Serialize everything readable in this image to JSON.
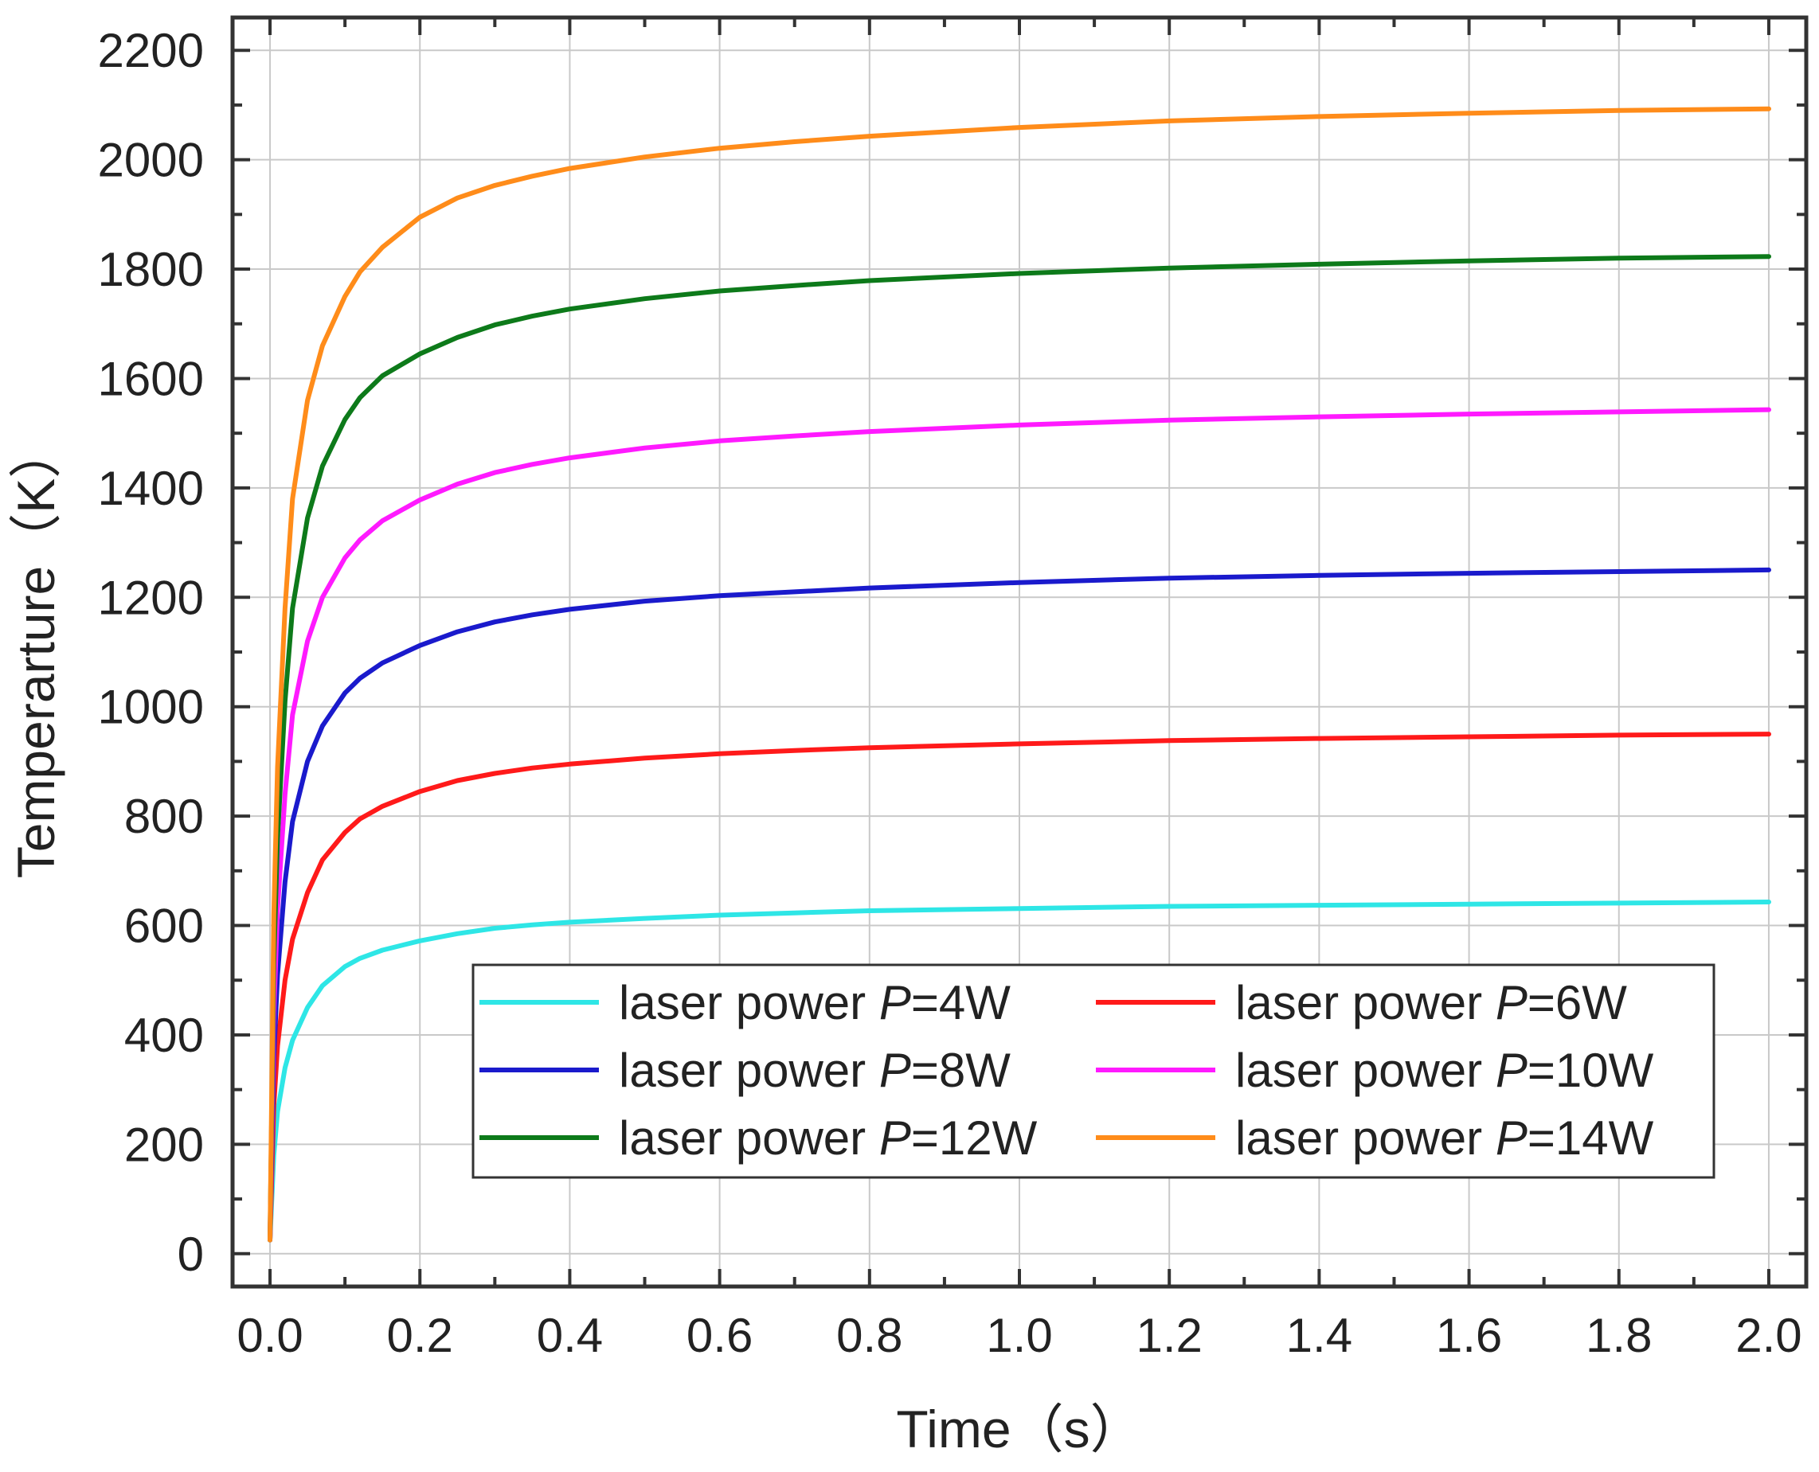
{
  "chart_data": {
    "type": "line",
    "title": "",
    "xlabel": "Time（s）",
    "ylabel": "Temperarture（K）",
    "xlim": [
      -0.05,
      2.05
    ],
    "ylim": [
      -60,
      2260
    ],
    "x_ticks": [
      0.0,
      0.2,
      0.4,
      0.6,
      0.8,
      1.0,
      1.2,
      1.4,
      1.6,
      1.8,
      2.0
    ],
    "x_tick_labels": [
      "0.0",
      "0.2",
      "0.4",
      "0.6",
      "0.8",
      "1.0",
      "1.2",
      "1.4",
      "1.6",
      "1.8",
      "2.0"
    ],
    "y_ticks": [
      0,
      200,
      400,
      600,
      800,
      1000,
      1200,
      1400,
      1600,
      1800,
      2000,
      2200
    ],
    "y_tick_labels": [
      "0",
      "200",
      "400",
      "600",
      "800",
      "1000",
      "1200",
      "1400",
      "1600",
      "1800",
      "2000",
      "2200"
    ],
    "grid": true,
    "legend_position": "center-bottom",
    "x": [
      0,
      0.005,
      0.01,
      0.02,
      0.03,
      0.05,
      0.07,
      0.1,
      0.12,
      0.15,
      0.2,
      0.25,
      0.3,
      0.35,
      0.4,
      0.5,
      0.6,
      0.7,
      0.8,
      1.0,
      1.2,
      1.4,
      1.6,
      1.8,
      2.0
    ],
    "series": [
      {
        "name": "laser power P=4W",
        "legend_prefix": "laser power ",
        "legend_var": "P",
        "legend_value": "=4W",
        "color": "#2ee6e6",
        "values": [
          25,
          180,
          260,
          340,
          390,
          450,
          490,
          525,
          540,
          555,
          572,
          585,
          595,
          601,
          606,
          613,
          619,
          623,
          627,
          631,
          635,
          637,
          639,
          641,
          643
        ]
      },
      {
        "name": "laser power P=6W",
        "legend_prefix": "laser power ",
        "legend_var": "P",
        "legend_value": "=6W",
        "color": "#ff1a1a",
        "values": [
          25,
          270,
          380,
          500,
          575,
          660,
          720,
          770,
          795,
          818,
          845,
          865,
          878,
          888,
          895,
          906,
          914,
          920,
          925,
          932,
          938,
          942,
          945,
          948,
          950
        ]
      },
      {
        "name": "laser power P=8W",
        "legend_prefix": "laser power ",
        "legend_var": "P",
        "legend_value": "=8W",
        "color": "#1a1acc",
        "values": [
          25,
          360,
          510,
          680,
          790,
          900,
          965,
          1025,
          1052,
          1080,
          1112,
          1137,
          1155,
          1168,
          1178,
          1193,
          1203,
          1210,
          1217,
          1227,
          1235,
          1240,
          1244,
          1247,
          1250
        ]
      },
      {
        "name": "laser power P=10W",
        "legend_prefix": "laser power ",
        "legend_var": "P",
        "legend_value": "=10W",
        "color": "#ff1aff",
        "values": [
          25,
          440,
          630,
          840,
          985,
          1120,
          1200,
          1272,
          1305,
          1340,
          1378,
          1407,
          1428,
          1443,
          1455,
          1473,
          1486,
          1495,
          1503,
          1515,
          1524,
          1530,
          1535,
          1539,
          1543
        ]
      },
      {
        "name": "laser power P=12W",
        "legend_prefix": "laser power ",
        "legend_var": "P",
        "legend_value": "=12W",
        "color": "#0d7a1a",
        "values": [
          25,
          530,
          760,
          1010,
          1180,
          1345,
          1440,
          1525,
          1565,
          1605,
          1645,
          1675,
          1698,
          1714,
          1727,
          1746,
          1760,
          1770,
          1779,
          1792,
          1802,
          1809,
          1815,
          1820,
          1823
        ]
      },
      {
        "name": "laser power P=14W",
        "legend_prefix": "laser power ",
        "legend_var": "P",
        "legend_value": "=14W",
        "color": "#ff8c1a",
        "values": [
          25,
          620,
          890,
          1180,
          1380,
          1560,
          1660,
          1750,
          1795,
          1840,
          1895,
          1930,
          1953,
          1970,
          1984,
          2005,
          2021,
          2033,
          2043,
          2059,
          2071,
          2079,
          2085,
          2090,
          2093
        ]
      }
    ]
  }
}
